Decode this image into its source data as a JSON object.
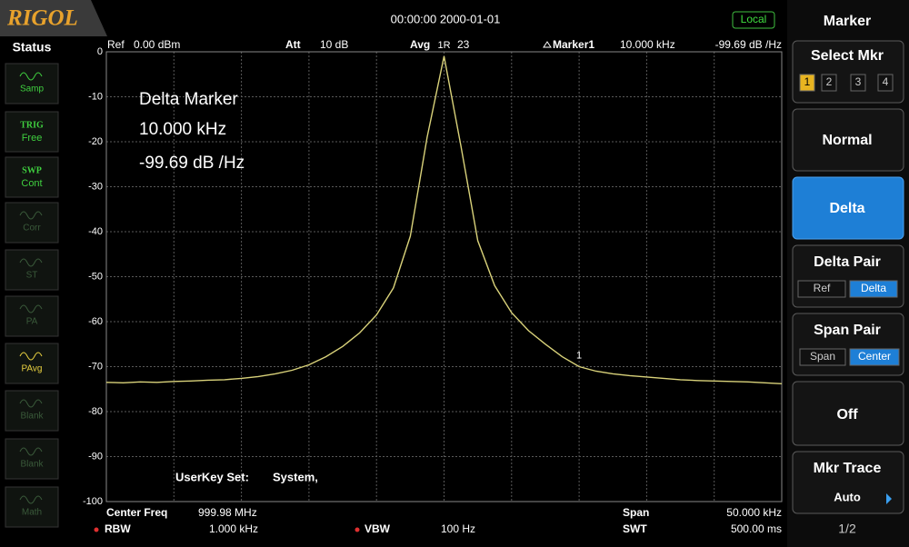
{
  "header": {
    "brand": "RIGOL",
    "datetime": "00:00:00 2000-01-01",
    "mode": "Local"
  },
  "status": {
    "title": "Status",
    "items": [
      {
        "top": "Samp"
      },
      {
        "top": "TRIG",
        "bottom": "Free"
      },
      {
        "top": "SWP",
        "bottom": "Cont"
      },
      {
        "top": "Corr"
      },
      {
        "top": "ST"
      },
      {
        "top": "PA"
      },
      {
        "top": "PAvg"
      },
      {
        "top": "Blank"
      },
      {
        "top": "Blank"
      },
      {
        "top": "Math"
      }
    ]
  },
  "info_bar": {
    "ref_label": "Ref",
    "ref_value": "0.00 dBm",
    "att_label": "Att",
    "att_value": "10 dB",
    "avg_label": "Avg",
    "avg_value": "23",
    "marker_label": "Marker1",
    "marker_freq": "10.000 kHz",
    "marker_level": "-99.69 dB /Hz"
  },
  "annotation": {
    "line1": "Delta Marker",
    "line2": "10.000 kHz",
    "line3": "-99.69 dB /Hz"
  },
  "userkey": {
    "label": "UserKey Set:",
    "value": "System,"
  },
  "markers": [
    {
      "label": "1R"
    },
    {
      "label": "1"
    }
  ],
  "chart_data": {
    "type": "line",
    "ylim": [
      -100,
      0
    ],
    "yticks": [
      0,
      -10,
      -20,
      -30,
      -40,
      -50,
      -60,
      -70,
      -80,
      -90,
      -100
    ],
    "grid": true,
    "color": "#d9d27a",
    "values": [
      -73.5,
      -73.6,
      -73.4,
      -73.5,
      -73.3,
      -73.2,
      -73.0,
      -72.9,
      -72.6,
      -72.2,
      -71.6,
      -70.8,
      -69.6,
      -67.8,
      -65.5,
      -62.5,
      -58.5,
      -52.5,
      -41,
      -19,
      -1,
      -21,
      -42,
      -52,
      -58,
      -62,
      -65,
      -67.8,
      -70,
      -71,
      -71.6,
      -72,
      -72.3,
      -72.6,
      -72.9,
      -73.1,
      -73.2,
      -73.3,
      -73.4,
      -73.6,
      -73.8
    ]
  },
  "footer": {
    "center_label": "Center Freq",
    "center_value": "999.98 MHz",
    "span_label": "Span",
    "span_value": "50.000 kHz",
    "rbw_label": "RBW",
    "rbw_value": "1.000 kHz",
    "vbw_label": "VBW",
    "vbw_value": "100 Hz",
    "swt_label": "SWT",
    "swt_value": "500.00 ms"
  },
  "menu": {
    "title": "Marker",
    "select_label": "Select Mkr",
    "select_options": [
      "1",
      "2",
      "3",
      "4"
    ],
    "normal": "Normal",
    "delta": "Delta",
    "delta_pair": "Delta Pair",
    "delta_pair_options": [
      "Ref",
      "Delta"
    ],
    "span_pair": "Span Pair",
    "span_pair_options": [
      "Span",
      "Center"
    ],
    "off": "Off",
    "mkr_trace": "Mkr Trace",
    "mkr_trace_value": "Auto",
    "page": "1/2"
  }
}
